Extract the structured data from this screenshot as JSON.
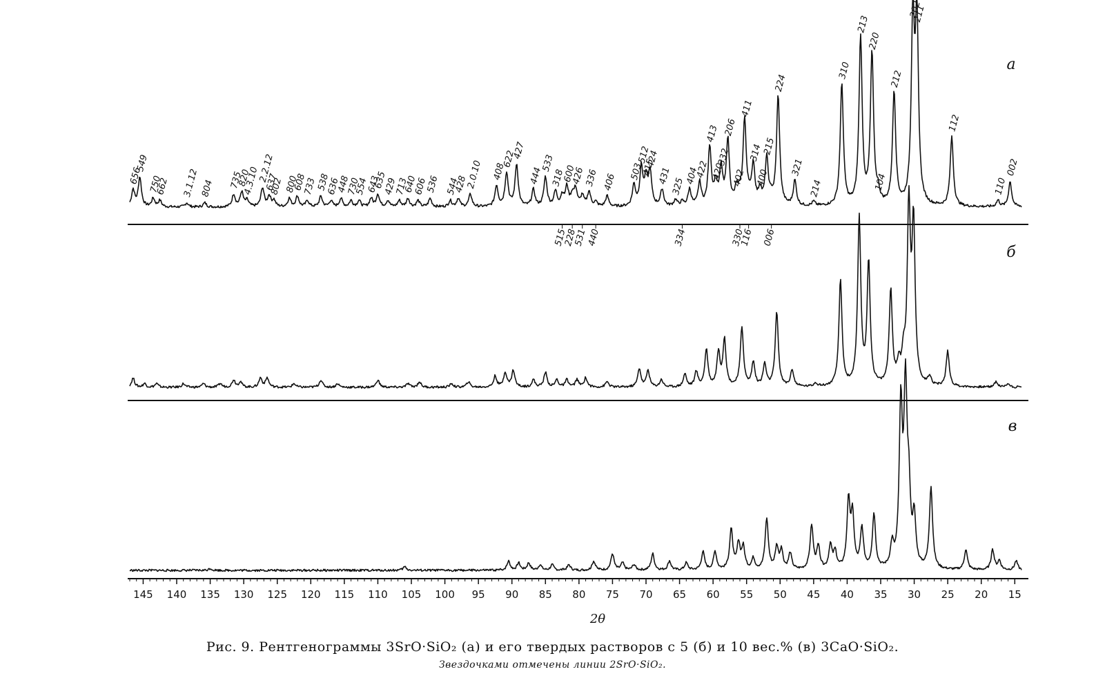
{
  "chart_data": {
    "type": "line",
    "x_axis": {
      "label": "2θ",
      "range": [
        147,
        14
      ],
      "ticks": [
        145,
        140,
        135,
        130,
        125,
        120,
        115,
        110,
        105,
        100,
        95,
        90,
        85,
        80,
        75,
        70,
        65,
        60,
        55,
        50,
        45,
        40,
        35,
        30,
        25,
        20,
        15
      ]
    },
    "panels": [
      {
        "label": "а",
        "peaks": [
          {
            "x": 146.5,
            "h": 0.08,
            "hkl": "656"
          },
          {
            "x": 145.5,
            "h": 0.14,
            "hkl": "549"
          },
          {
            "x": 143.5,
            "h": 0.04,
            "hkl": "750"
          },
          {
            "x": 142.5,
            "h": 0.03,
            "hkl": "662"
          },
          {
            "x": 138.5,
            "h": 0.02,
            "hkl": "3.1.12"
          },
          {
            "x": 135.8,
            "h": 0.02,
            "hkl": "804"
          },
          {
            "x": 131.5,
            "h": 0.06,
            "hkl": "735"
          },
          {
            "x": 130.3,
            "h": 0.07,
            "hkl": "820"
          },
          {
            "x": 129.5,
            "h": 0.03,
            "hkl": "4.3.10"
          },
          {
            "x": 127.2,
            "h": 0.09,
            "hkl": "2.2.12"
          },
          {
            "x": 126.2,
            "h": 0.05,
            "hkl": "637"
          },
          {
            "x": 125.5,
            "h": 0.03,
            "hkl": "802"
          },
          {
            "x": 123.2,
            "h": 0.04,
            "hkl": "800"
          },
          {
            "x": 122.0,
            "h": 0.05,
            "hkl": "608"
          },
          {
            "x": 120.5,
            "h": 0.03,
            "hkl": "733"
          },
          {
            "x": 118.5,
            "h": 0.05,
            "hkl": "538"
          },
          {
            "x": 117.0,
            "h": 0.03,
            "hkl": "636"
          },
          {
            "x": 115.5,
            "h": 0.04,
            "hkl": "448"
          },
          {
            "x": 114.0,
            "h": 0.03,
            "hkl": "730"
          },
          {
            "x": 112.8,
            "h": 0.03,
            "hkl": "554"
          },
          {
            "x": 111.0,
            "h": 0.04,
            "hkl": "643"
          },
          {
            "x": 110.0,
            "h": 0.06,
            "hkl": "635"
          },
          {
            "x": 108.5,
            "h": 0.03,
            "hkl": "429"
          },
          {
            "x": 106.8,
            "h": 0.03,
            "hkl": "713"
          },
          {
            "x": 105.5,
            "h": 0.04,
            "hkl": "640"
          },
          {
            "x": 104.0,
            "h": 0.03,
            "hkl": "606"
          },
          {
            "x": 102.2,
            "h": 0.04,
            "hkl": "536"
          },
          {
            "x": 99.2,
            "h": 0.03,
            "hkl": "544"
          },
          {
            "x": 98.0,
            "h": 0.04,
            "hkl": "428"
          },
          {
            "x": 96.2,
            "h": 0.06,
            "hkl": "2.0.10"
          },
          {
            "x": 92.3,
            "h": 0.1,
            "hkl": "408"
          },
          {
            "x": 90.8,
            "h": 0.16,
            "hkl": "622"
          },
          {
            "x": 89.3,
            "h": 0.2,
            "hkl": "427"
          },
          {
            "x": 86.8,
            "h": 0.08,
            "hkl": "444"
          },
          {
            "x": 85.0,
            "h": 0.14,
            "hkl": "533"
          },
          {
            "x": 83.5,
            "h": 0.07,
            "hkl": "318"
          },
          {
            "x": 82.5,
            "h": 0.05,
            "hkl": "515"
          },
          {
            "x": 81.8,
            "h": 0.09,
            "hkl": "600"
          },
          {
            "x": 81.0,
            "h": 0.05,
            "hkl": "228"
          },
          {
            "x": 80.5,
            "h": 0.08,
            "hkl": "426"
          },
          {
            "x": 79.5,
            "h": 0.05,
            "hkl": "531"
          },
          {
            "x": 78.5,
            "h": 0.07,
            "hkl": "336"
          },
          {
            "x": 77.5,
            "h": 0.02,
            "hkl": "440"
          },
          {
            "x": 75.8,
            "h": 0.05,
            "hkl": "406"
          },
          {
            "x": 71.8,
            "h": 0.1,
            "hkl": "503"
          },
          {
            "x": 70.7,
            "h": 0.18,
            "hkl": "512"
          },
          {
            "x": 70.0,
            "h": 0.12,
            "hkl": "415"
          },
          {
            "x": 69.4,
            "h": 0.16,
            "hkl": "424"
          },
          {
            "x": 67.6,
            "h": 0.08,
            "hkl": "431"
          },
          {
            "x": 65.6,
            "h": 0.03,
            "hkl": "325"
          },
          {
            "x": 64.6,
            "h": 0.02,
            "hkl": "334"
          },
          {
            "x": 63.5,
            "h": 0.08,
            "hkl": "404"
          },
          {
            "x": 62.0,
            "h": 0.11,
            "hkl": "422"
          },
          {
            "x": 60.5,
            "h": 0.28,
            "hkl": "413"
          },
          {
            "x": 59.6,
            "h": 0.1,
            "hkl": "420"
          },
          {
            "x": 58.8,
            "h": 0.17,
            "hkl": "332"
          },
          {
            "x": 57.8,
            "h": 0.31,
            "hkl": "206"
          },
          {
            "x": 56.5,
            "h": 0.07,
            "hkl": "402"
          },
          {
            "x": 56.0,
            "h": 0.04,
            "hkl": "330"
          },
          {
            "x": 55.3,
            "h": 0.4,
            "hkl": "411"
          },
          {
            "x": 54.7,
            "h": 0.03,
            "hkl": "116"
          },
          {
            "x": 54.0,
            "h": 0.19,
            "hkl": "314"
          },
          {
            "x": 53.0,
            "h": 0.07,
            "hkl": "400"
          },
          {
            "x": 52.0,
            "h": 0.22,
            "hkl": "215"
          },
          {
            "x": 51.3,
            "h": 0.03,
            "hkl": "006"
          },
          {
            "x": 50.3,
            "h": 0.52,
            "hkl": "224"
          },
          {
            "x": 47.8,
            "h": 0.12,
            "hkl": "321"
          },
          {
            "x": 45.0,
            "h": 0.02,
            "hkl": "214"
          },
          {
            "x": 40.8,
            "h": 0.58,
            "hkl": "310"
          },
          {
            "x": 38.0,
            "h": 0.8,
            "hkl": "213"
          },
          {
            "x": 36.3,
            "h": 0.72,
            "hkl": "220"
          },
          {
            "x": 35.4,
            "h": 0.05,
            "hkl": "104"
          },
          {
            "x": 33.0,
            "h": 0.54,
            "hkl": "212"
          },
          {
            "x": 30.2,
            "h": 0.87,
            "hkl": "202"
          },
          {
            "x": 29.6,
            "h": 0.85,
            "hkl": "211"
          },
          {
            "x": 24.4,
            "h": 0.33,
            "hkl": "112"
          },
          {
            "x": 17.5,
            "h": 0.03,
            "hkl": "110"
          },
          {
            "x": 15.7,
            "h": 0.12,
            "hkl": "002"
          }
        ]
      },
      {
        "label": "б",
        "peaks": [
          {
            "x": 146.5,
            "h": 0.05
          },
          {
            "x": 144.8,
            "h": 0.02
          },
          {
            "x": 143.0,
            "h": 0.02
          },
          {
            "x": 139.0,
            "h": 0.02
          },
          {
            "x": 136.0,
            "h": 0.02
          },
          {
            "x": 133.5,
            "h": 0.02
          },
          {
            "x": 131.5,
            "h": 0.04
          },
          {
            "x": 130.5,
            "h": 0.03
          },
          {
            "x": 127.5,
            "h": 0.05
          },
          {
            "x": 126.5,
            "h": 0.05
          },
          {
            "x": 122.5,
            "h": 0.02
          },
          {
            "x": 118.5,
            "h": 0.04
          },
          {
            "x": 116.0,
            "h": 0.02
          },
          {
            "x": 110.0,
            "h": 0.04
          },
          {
            "x": 105.5,
            "h": 0.02
          },
          {
            "x": 103.8,
            "h": 0.03
          },
          {
            "x": 99.0,
            "h": 0.02
          },
          {
            "x": 96.5,
            "h": 0.03
          },
          {
            "x": 92.5,
            "h": 0.06
          },
          {
            "x": 91.0,
            "h": 0.08
          },
          {
            "x": 89.8,
            "h": 0.09
          },
          {
            "x": 86.8,
            "h": 0.04
          },
          {
            "x": 85.0,
            "h": 0.08
          },
          {
            "x": 83.3,
            "h": 0.04
          },
          {
            "x": 81.8,
            "h": 0.04
          },
          {
            "x": 80.3,
            "h": 0.04
          },
          {
            "x": 79.0,
            "h": 0.05
          },
          {
            "x": 75.8,
            "h": 0.03
          },
          {
            "x": 71.0,
            "h": 0.1
          },
          {
            "x": 69.7,
            "h": 0.09
          },
          {
            "x": 67.7,
            "h": 0.04
          },
          {
            "x": 64.2,
            "h": 0.07
          },
          {
            "x": 62.5,
            "h": 0.08
          },
          {
            "x": 61.0,
            "h": 0.2
          },
          {
            "x": 59.2,
            "h": 0.18
          },
          {
            "x": 58.3,
            "h": 0.25
          },
          {
            "x": 55.7,
            "h": 0.32
          },
          {
            "x": 54.0,
            "h": 0.13
          },
          {
            "x": 52.3,
            "h": 0.12
          },
          {
            "x": 50.5,
            "h": 0.4
          },
          {
            "x": 48.2,
            "h": 0.09
          },
          {
            "x": 44.7,
            "h": 0.02
          },
          {
            "x": 41.0,
            "h": 0.57
          },
          {
            "x": 38.2,
            "h": 0.9
          },
          {
            "x": 36.8,
            "h": 0.66
          },
          {
            "x": 33.5,
            "h": 0.51
          },
          {
            "x": 32.3,
            "h": 0.1
          },
          {
            "x": 31.6,
            "h": 0.14
          },
          {
            "x": 30.8,
            "h": 0.95
          },
          {
            "x": 30.1,
            "h": 0.85
          },
          {
            "x": 27.7,
            "h": 0.05
          },
          {
            "x": 25.0,
            "h": 0.19
          },
          {
            "x": 17.8,
            "h": 0.03
          },
          {
            "x": 16.0,
            "h": 0.02
          }
        ]
      },
      {
        "label": "в",
        "peaks": [
          {
            "x": 135.0,
            "h": 0.01
          },
          {
            "x": 106.0,
            "h": 0.02
          },
          {
            "x": 90.5,
            "h": 0.05
          },
          {
            "x": 89.0,
            "h": 0.04
          },
          {
            "x": 87.5,
            "h": 0.04
          },
          {
            "x": 85.8,
            "h": 0.03
          },
          {
            "x": 84.0,
            "h": 0.03
          },
          {
            "x": 81.5,
            "h": 0.03
          },
          {
            "x": 77.8,
            "h": 0.05
          },
          {
            "x": 75.0,
            "h": 0.09
          },
          {
            "x": 73.5,
            "h": 0.04
          },
          {
            "x": 71.8,
            "h": 0.03
          },
          {
            "x": 69.0,
            "h": 0.09
          },
          {
            "x": 66.5,
            "h": 0.05
          },
          {
            "x": 64.0,
            "h": 0.04
          },
          {
            "x": 61.5,
            "h": 0.1
          },
          {
            "x": 59.7,
            "h": 0.1
          },
          {
            "x": 57.3,
            "h": 0.22
          },
          {
            "x": 56.2,
            "h": 0.14
          },
          {
            "x": 55.5,
            "h": 0.12
          },
          {
            "x": 54.0,
            "h": 0.06
          },
          {
            "x": 52.0,
            "h": 0.28
          },
          {
            "x": 50.5,
            "h": 0.12
          },
          {
            "x": 49.8,
            "h": 0.1
          },
          {
            "x": 48.5,
            "h": 0.09
          },
          {
            "x": 45.3,
            "h": 0.24
          },
          {
            "x": 44.3,
            "h": 0.12
          },
          {
            "x": 42.5,
            "h": 0.13
          },
          {
            "x": 41.8,
            "h": 0.09
          },
          {
            "x": 39.8,
            "h": 0.36
          },
          {
            "x": 39.2,
            "h": 0.28
          },
          {
            "x": 37.8,
            "h": 0.22
          },
          {
            "x": 36.0,
            "h": 0.3
          },
          {
            "x": 33.3,
            "h": 0.12
          },
          {
            "x": 32.0,
            "h": 0.86
          },
          {
            "x": 31.3,
            "h": 0.94
          },
          {
            "x": 30.8,
            "h": 0.36
          },
          {
            "x": 30.0,
            "h": 0.26
          },
          {
            "x": 27.5,
            "h": 0.45
          },
          {
            "x": 22.3,
            "h": 0.11
          },
          {
            "x": 18.3,
            "h": 0.11
          },
          {
            "x": 17.3,
            "h": 0.05
          },
          {
            "x": 14.8,
            "h": 0.05
          }
        ]
      }
    ]
  },
  "caption": {
    "main": "Рис. 9. Рентгенограммы 3SrO·SiO₂ (а) и его твердых растворов с 5 (б) и 10 вес.% (в) 3CaO·SiO₂.",
    "note": "Звездочками отмечены линии 2SrO·SiO₂."
  }
}
